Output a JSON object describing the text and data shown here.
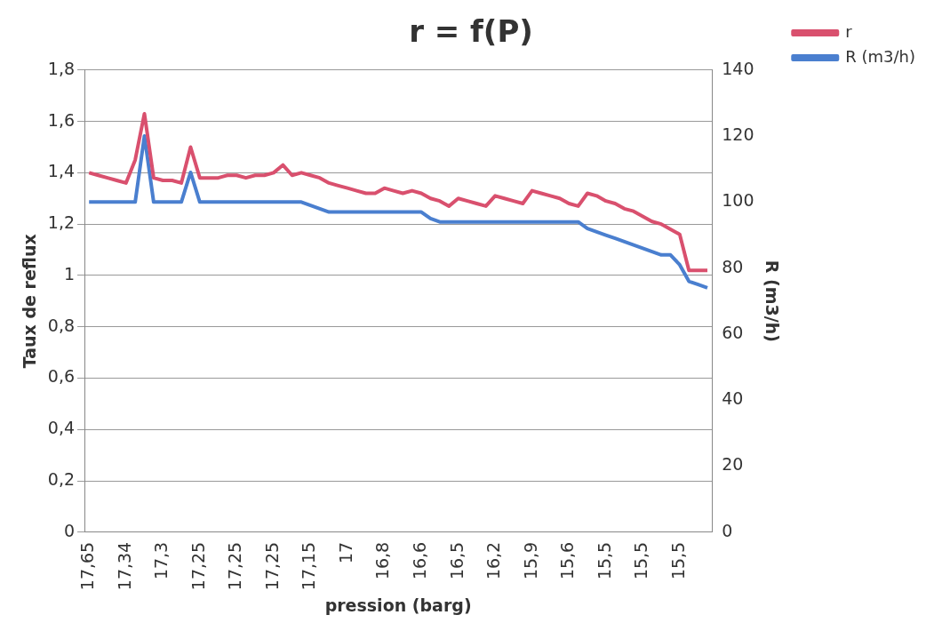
{
  "chart_data": {
    "type": "line",
    "title": "r = f(P)",
    "xlabel": "pression (barg)",
    "ylabel": "Taux de reflux",
    "y2label": "R (m3/h)",
    "categories": [
      "17,65",
      null,
      null,
      null,
      "17,34",
      null,
      null,
      null,
      "17,3",
      null,
      null,
      null,
      "17,25",
      null,
      null,
      null,
      "17,25",
      null,
      null,
      null,
      "17,25",
      null,
      null,
      null,
      "17,15",
      null,
      null,
      null,
      "17",
      null,
      null,
      null,
      "16,8",
      null,
      null,
      null,
      "16,6",
      null,
      null,
      null,
      "16,5",
      null,
      null,
      null,
      "16,2",
      null,
      null,
      null,
      "15,9",
      null,
      null,
      null,
      "15,6",
      null,
      null,
      null,
      "15,5",
      null,
      null,
      null,
      "15,5",
      null,
      null,
      null,
      "15,5",
      null,
      null,
      null
    ],
    "series": [
      {
        "name": "r",
        "color": "#d9506e",
        "values": [
          1.4,
          1.39,
          1.38,
          1.37,
          1.36,
          1.45,
          1.63,
          1.38,
          1.37,
          1.37,
          1.36,
          1.5,
          1.38,
          1.38,
          1.38,
          1.39,
          1.39,
          1.38,
          1.39,
          1.39,
          1.4,
          1.43,
          1.39,
          1.4,
          1.39,
          1.38,
          1.36,
          1.35,
          1.34,
          1.33,
          1.32,
          1.32,
          1.34,
          1.33,
          1.32,
          1.33,
          1.32,
          1.3,
          1.29,
          1.27,
          1.3,
          1.29,
          1.28,
          1.27,
          1.31,
          1.3,
          1.29,
          1.28,
          1.33,
          1.32,
          1.31,
          1.3,
          1.28,
          1.27,
          1.32,
          1.31,
          1.29,
          1.28,
          1.26,
          1.25,
          1.23,
          1.21,
          1.2,
          1.18,
          1.16,
          1.02,
          1.02,
          1.02
        ]
      },
      {
        "name": "R (m3/h)",
        "color": "#4a7fcf",
        "axis": "y2",
        "values": [
          100,
          100,
          100,
          100,
          100,
          100,
          120,
          100,
          100,
          100,
          100,
          109,
          100,
          100,
          100,
          100,
          100,
          100,
          100,
          100,
          100,
          100,
          100,
          100,
          99,
          98,
          97,
          97,
          97,
          97,
          97,
          97,
          97,
          97,
          97,
          97,
          97,
          95,
          94,
          94,
          94,
          94,
          94,
          94,
          94,
          94,
          94,
          94,
          94,
          94,
          94,
          94,
          94,
          94,
          92,
          91,
          90,
          89,
          88,
          87,
          86,
          85,
          84,
          84,
          81,
          76,
          75,
          74
        ]
      }
    ],
    "ylim": [
      0,
      1.8
    ],
    "yticks": [
      0,
      {
        "value": 0.2,
        "label": "0,2"
      },
      {
        "value": 0.4,
        "label": "0,4"
      },
      {
        "value": 0.6,
        "label": "0,6"
      },
      {
        "value": 0.8,
        "label": "0,8"
      },
      1,
      {
        "value": 1.2,
        "label": "1,2"
      },
      {
        "value": 1.4,
        "label": "1,4"
      },
      {
        "value": 1.6,
        "label": "1,6"
      },
      {
        "value": 1.8,
        "label": "1,8"
      }
    ],
    "y2lim": [
      0,
      140
    ],
    "y2ticks": [
      0,
      20,
      40,
      60,
      80,
      100,
      120,
      140
    ],
    "grid": "y",
    "legend": "right",
    "marker": "none",
    "line_style": "solid"
  }
}
